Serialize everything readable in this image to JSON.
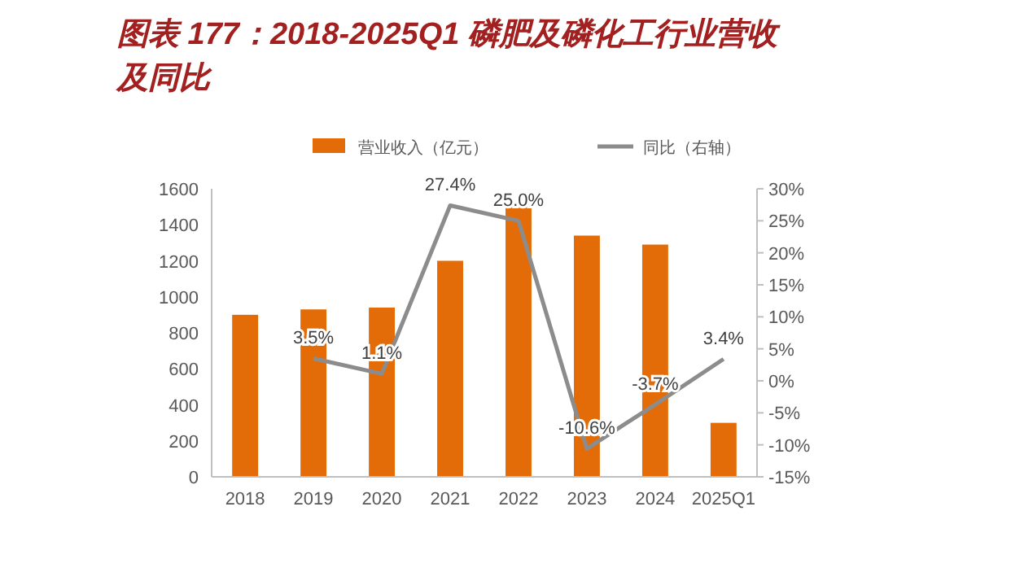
{
  "chart_data": {
    "type": "bar",
    "title": "图表 177：2018-2025Q1 磷肥及磷化工行业营收及同比",
    "categories": [
      "2018",
      "2019",
      "2020",
      "2021",
      "2022",
      "2023",
      "2024",
      "2025Q1"
    ],
    "series": [
      {
        "name": "营业收入（亿元）",
        "color": "#e36c09",
        "values": [
          900,
          930,
          940,
          1200,
          1500,
          1340,
          1290,
          300
        ]
      },
      {
        "name": "同比（右轴）",
        "type": "line",
        "axis": "y2",
        "color": "#8c8c8c",
        "marker": "none",
        "values": [
          null,
          3.5,
          1.1,
          27.4,
          25.0,
          -10.6,
          -3.7,
          3.4
        ],
        "value_labels": [
          null,
          "3.5%",
          "1.1%",
          "27.4%",
          "25.0%",
          "-10.6%",
          "-3.7%",
          "3.4%"
        ]
      }
    ],
    "ylim": [
      0,
      1600
    ],
    "yticks": [
      0,
      200,
      400,
      600,
      800,
      1000,
      1200,
      1400,
      1600
    ],
    "y2lim": [
      -15,
      30
    ],
    "y2ticks": [
      {
        "value": -15,
        "label": "-15%"
      },
      {
        "value": -10,
        "label": "-10%"
      },
      {
        "value": -5,
        "label": "-5%"
      },
      {
        "value": 0,
        "label": "0%"
      },
      {
        "value": 5,
        "label": "5%"
      },
      {
        "value": 10,
        "label": "10%"
      },
      {
        "value": 15,
        "label": "15%"
      },
      {
        "value": 20,
        "label": "20%"
      },
      {
        "value": 25,
        "label": "25%"
      },
      {
        "value": 30,
        "label": "30%"
      }
    ],
    "grid": false,
    "legend": "top"
  }
}
